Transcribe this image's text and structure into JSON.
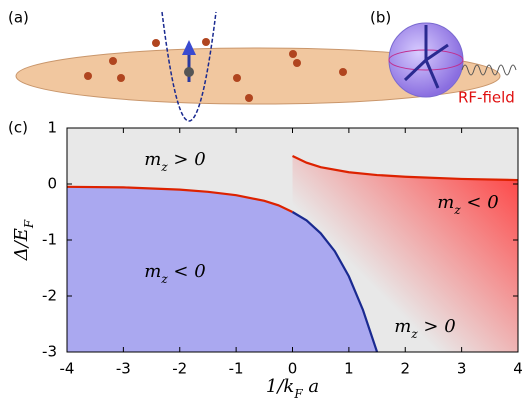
{
  "panel_labels": [
    "(a)",
    "(b)",
    "(c)"
  ],
  "rf_label": "RF-field",
  "chart_data": {
    "type": "line",
    "xlabel": "1/k_F a",
    "ylabel": "Δ/E_F",
    "xlim": [
      -4,
      4
    ],
    "ylim": [
      -3,
      1
    ],
    "xticks": [
      -4,
      -3,
      -2,
      -1,
      0,
      1,
      2,
      3,
      4
    ],
    "yticks": [
      1,
      0,
      -1,
      -2,
      -3
    ],
    "series": [
      {
        "color": "#dd2200",
        "x": [
          -4,
          -3,
          -2,
          -1.5,
          -1,
          -0.5,
          -0.25,
          0
        ],
        "values": [
          -0.05,
          -0.06,
          -0.1,
          -0.14,
          -0.2,
          -0.3,
          -0.38,
          -0.5
        ]
      },
      {
        "color": "#1a2a90",
        "x": [
          0,
          0.25,
          0.5,
          0.75,
          1,
          1.25,
          1.5
        ],
        "values": [
          -0.5,
          -0.65,
          -0.88,
          -1.2,
          -1.65,
          -2.25,
          -3
        ]
      },
      {
        "color": "#dd2200",
        "x": [
          0,
          0.25,
          0.5,
          1,
          1.5,
          2,
          3,
          4
        ],
        "values": [
          0.5,
          0.38,
          0.3,
          0.21,
          0.16,
          0.13,
          0.09,
          0.07
        ]
      }
    ],
    "annotations": [
      "m_z > 0",
      "m_z < 0",
      "m_z < 0",
      "m_z > 0"
    ]
  }
}
